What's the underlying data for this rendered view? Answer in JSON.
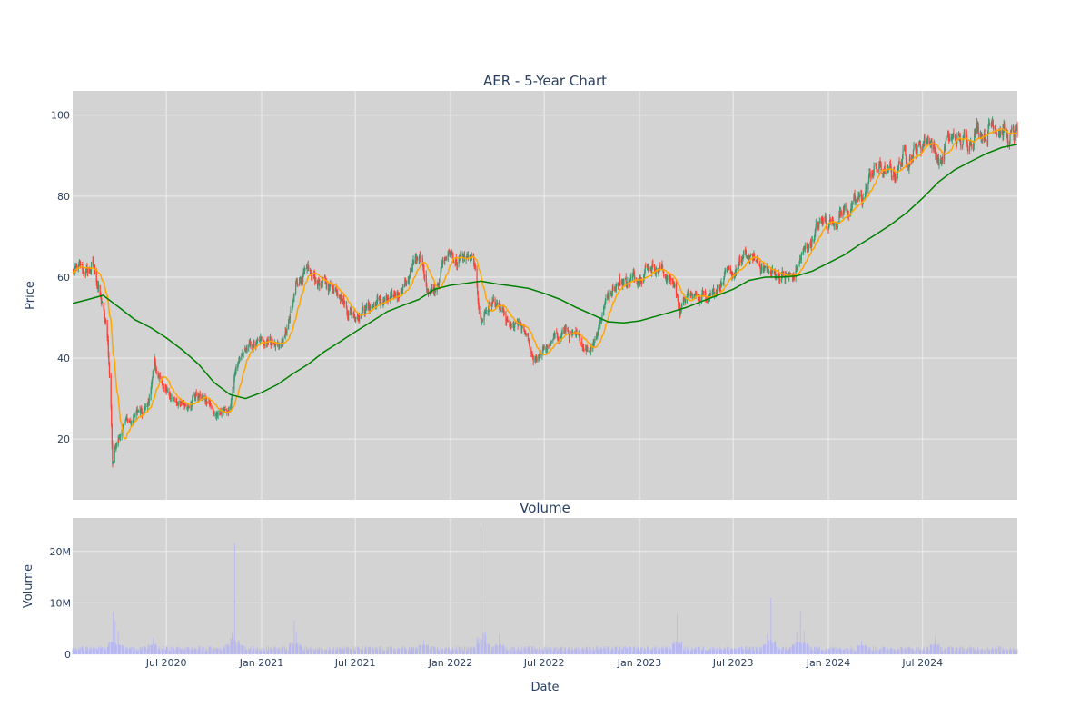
{
  "chart_data": [
    {
      "type": "candlestick",
      "title": "AER - 5-Year Chart",
      "ylabel": "Price",
      "ylim": [
        5,
        106
      ],
      "yticks": [
        20,
        40,
        60,
        80,
        100
      ],
      "grid": true,
      "colors": {
        "up": "#3d9970",
        "down": "#ff4136",
        "ma_short": "#ffa500",
        "ma_long": "#008000",
        "background": "#d3d3d3",
        "gridline": "#ececec"
      },
      "close_path": [
        [
          "2020-01-02",
          61
        ],
        [
          "2020-01-15",
          62
        ],
        [
          "2020-02-01",
          61
        ],
        [
          "2020-02-10",
          63
        ],
        [
          "2020-02-20",
          58
        ],
        [
          "2020-03-01",
          52
        ],
        [
          "2020-03-10",
          44
        ],
        [
          "2020-03-16",
          28
        ],
        [
          "2020-03-19",
          14
        ],
        [
          "2020-03-24",
          18
        ],
        [
          "2020-04-01",
          21
        ],
        [
          "2020-04-15",
          25
        ],
        [
          "2020-04-25",
          24
        ],
        [
          "2020-05-05",
          27
        ],
        [
          "2020-05-15",
          26
        ],
        [
          "2020-05-25",
          28
        ],
        [
          "2020-06-01",
          32
        ],
        [
          "2020-06-08",
          40
        ],
        [
          "2020-06-15",
          35
        ],
        [
          "2020-06-25",
          33
        ],
        [
          "2020-07-10",
          30
        ],
        [
          "2020-07-25",
          29
        ],
        [
          "2020-08-10",
          28
        ],
        [
          "2020-08-25",
          31
        ],
        [
          "2020-09-10",
          30
        ],
        [
          "2020-09-25",
          28
        ],
        [
          "2020-10-05",
          26
        ],
        [
          "2020-10-20",
          27
        ],
        [
          "2020-11-01",
          27
        ],
        [
          "2020-11-09",
          35
        ],
        [
          "2020-11-20",
          39
        ],
        [
          "2020-12-01",
          42
        ],
        [
          "2020-12-15",
          43
        ],
        [
          "2021-01-01",
          44
        ],
        [
          "2021-01-15",
          45
        ],
        [
          "2021-02-01",
          43
        ],
        [
          "2021-02-15",
          45
        ],
        [
          "2021-03-01",
          52
        ],
        [
          "2021-03-10",
          59
        ],
        [
          "2021-03-20",
          61
        ],
        [
          "2021-04-01",
          60
        ],
        [
          "2021-04-20",
          59
        ],
        [
          "2021-05-10",
          58
        ],
        [
          "2021-06-01",
          57
        ],
        [
          "2021-06-15",
          52
        ],
        [
          "2021-07-01",
          51
        ],
        [
          "2021-07-15",
          52
        ],
        [
          "2021-08-01",
          53
        ],
        [
          "2021-08-20",
          54
        ],
        [
          "2021-09-10",
          54
        ],
        [
          "2021-10-01",
          58
        ],
        [
          "2021-10-20",
          62
        ],
        [
          "2021-11-01",
          66
        ],
        [
          "2021-11-15",
          58
        ],
        [
          "2021-12-01",
          57
        ],
        [
          "2021-12-15",
          63
        ],
        [
          "2022-01-01",
          66
        ],
        [
          "2022-01-15",
          64
        ],
        [
          "2022-02-01",
          65
        ],
        [
          "2022-02-15",
          63
        ],
        [
          "2022-03-01",
          49
        ],
        [
          "2022-03-10",
          52
        ],
        [
          "2022-03-25",
          54
        ],
        [
          "2022-04-10",
          51
        ],
        [
          "2022-04-25",
          47
        ],
        [
          "2022-05-10",
          48
        ],
        [
          "2022-05-25",
          46
        ],
        [
          "2022-06-10",
          40
        ],
        [
          "2022-06-25",
          41
        ],
        [
          "2022-07-10",
          43
        ],
        [
          "2022-07-25",
          45
        ],
        [
          "2022-08-10",
          47
        ],
        [
          "2022-08-25",
          45
        ],
        [
          "2022-09-10",
          44
        ],
        [
          "2022-09-25",
          42
        ],
        [
          "2022-10-10",
          46
        ],
        [
          "2022-10-25",
          53
        ],
        [
          "2022-11-10",
          58
        ],
        [
          "2022-11-25",
          59
        ],
        [
          "2022-12-10",
          59
        ],
        [
          "2022-12-25",
          60
        ],
        [
          "2023-01-10",
          62
        ],
        [
          "2023-01-25",
          63
        ],
        [
          "2023-02-10",
          62
        ],
        [
          "2023-02-25",
          60
        ],
        [
          "2023-03-10",
          58
        ],
        [
          "2023-03-20",
          52
        ],
        [
          "2023-04-01",
          55
        ],
        [
          "2023-04-20",
          55
        ],
        [
          "2023-05-10",
          56
        ],
        [
          "2023-05-25",
          57
        ],
        [
          "2023-06-10",
          59
        ],
        [
          "2023-06-25",
          60
        ],
        [
          "2023-07-10",
          62
        ],
        [
          "2023-07-25",
          65
        ],
        [
          "2023-08-10",
          64
        ],
        [
          "2023-08-25",
          63
        ],
        [
          "2023-09-10",
          61
        ],
        [
          "2023-09-25",
          61
        ],
        [
          "2023-10-10",
          60
        ],
        [
          "2023-10-25",
          60
        ],
        [
          "2023-11-10",
          65
        ],
        [
          "2023-11-25",
          68
        ],
        [
          "2023-12-10",
          72
        ],
        [
          "2023-12-25",
          74
        ],
        [
          "2024-01-10",
          74
        ],
        [
          "2024-01-25",
          76
        ],
        [
          "2024-02-10",
          77
        ],
        [
          "2024-02-25",
          78
        ],
        [
          "2024-03-10",
          80
        ],
        [
          "2024-03-25",
          86
        ],
        [
          "2024-04-10",
          87
        ],
        [
          "2024-04-25",
          85
        ],
        [
          "2024-05-10",
          86
        ],
        [
          "2024-05-25",
          90
        ],
        [
          "2024-06-10",
          91
        ],
        [
          "2024-06-25",
          92
        ],
        [
          "2024-07-05",
          94
        ],
        [
          "2024-07-15",
          95
        ],
        [
          "2024-07-25",
          91
        ],
        [
          "2024-08-05",
          88
        ],
        [
          "2024-08-15",
          93
        ],
        [
          "2024-09-01",
          94
        ],
        [
          "2024-09-15",
          93
        ],
        [
          "2024-10-01",
          95
        ],
        [
          "2024-10-15",
          97
        ],
        [
          "2024-11-01",
          96
        ],
        [
          "2024-11-15",
          99
        ],
        [
          "2024-12-01",
          97
        ],
        [
          "2024-12-15",
          94
        ],
        [
          "2024-12-31",
          95
        ]
      ],
      "ma_long": [
        [
          "2020-01-02",
          53.5
        ],
        [
          "2020-02-01",
          54.5
        ],
        [
          "2020-03-01",
          55.5
        ],
        [
          "2020-04-01",
          52.5
        ],
        [
          "2020-05-01",
          49.5
        ],
        [
          "2020-06-01",
          47.5
        ],
        [
          "2020-07-01",
          45
        ],
        [
          "2020-08-01",
          42
        ],
        [
          "2020-09-01",
          38.5
        ],
        [
          "2020-10-01",
          34
        ],
        [
          "2020-11-01",
          31
        ],
        [
          "2020-12-01",
          30
        ],
        [
          "2021-01-01",
          31.5
        ],
        [
          "2021-02-01",
          33.5
        ],
        [
          "2021-03-01",
          36
        ],
        [
          "2021-04-01",
          38.5
        ],
        [
          "2021-05-01",
          41.5
        ],
        [
          "2021-06-01",
          44
        ],
        [
          "2021-07-01",
          46.5
        ],
        [
          "2021-08-01",
          49
        ],
        [
          "2021-09-01",
          51.5
        ],
        [
          "2021-10-01",
          53
        ],
        [
          "2021-11-01",
          54.5
        ],
        [
          "2021-12-01",
          57
        ],
        [
          "2022-01-01",
          58
        ],
        [
          "2022-02-01",
          58.5
        ],
        [
          "2022-03-01",
          59
        ],
        [
          "2022-04-01",
          58.3
        ],
        [
          "2022-05-01",
          57.8
        ],
        [
          "2022-06-01",
          57.2
        ],
        [
          "2022-07-01",
          56
        ],
        [
          "2022-08-01",
          54.5
        ],
        [
          "2022-09-01",
          52.5
        ],
        [
          "2022-10-01",
          50.8
        ],
        [
          "2022-11-01",
          49
        ],
        [
          "2022-12-01",
          48.7
        ],
        [
          "2023-01-01",
          49.2
        ],
        [
          "2023-02-01",
          50.3
        ],
        [
          "2023-03-01",
          51.3
        ],
        [
          "2023-04-01",
          52.5
        ],
        [
          "2023-05-01",
          54
        ],
        [
          "2023-06-01",
          55.5
        ],
        [
          "2023-07-01",
          57
        ],
        [
          "2023-08-01",
          59.2
        ],
        [
          "2023-09-01",
          60
        ],
        [
          "2023-10-01",
          60
        ],
        [
          "2023-11-01",
          60.3
        ],
        [
          "2023-12-01",
          61.5
        ],
        [
          "2024-01-01",
          63.5
        ],
        [
          "2024-02-01",
          65.5
        ],
        [
          "2024-03-01",
          68
        ],
        [
          "2024-04-01",
          70.5
        ],
        [
          "2024-05-01",
          73
        ],
        [
          "2024-06-01",
          76
        ],
        [
          "2024-07-01",
          79.5
        ],
        [
          "2024-08-01",
          83.5
        ],
        [
          "2024-09-01",
          86.5
        ],
        [
          "2024-10-01",
          88.5
        ],
        [
          "2024-11-01",
          90.5
        ],
        [
          "2024-12-01",
          92
        ],
        [
          "2024-12-31",
          92.8
        ]
      ]
    },
    {
      "type": "bar",
      "title": "Volume",
      "xlabel": "Date",
      "ylabel": "Volume",
      "ylim": [
        0,
        26500000
      ],
      "yticks": [
        0,
        10000000,
        20000000
      ],
      "ytick_labels": [
        "0",
        "10M",
        "20M"
      ],
      "grid": true,
      "colors": {
        "bar": "#b6b6f0",
        "background": "#d3d3d3"
      },
      "baseline_range": [
        600000,
        1600000
      ],
      "spikes": [
        [
          "2020-03-20",
          8200000
        ],
        [
          "2020-03-24",
          6500000
        ],
        [
          "2020-03-30",
          4500000
        ],
        [
          "2020-06-05",
          3200000
        ],
        [
          "2020-11-01",
          5600000
        ],
        [
          "2020-11-10",
          21700000
        ],
        [
          "2020-11-18",
          2800000
        ],
        [
          "2021-03-05",
          6600000
        ],
        [
          "2021-03-09",
          4200000
        ],
        [
          "2021-11-10",
          2700000
        ],
        [
          "2022-03-01",
          24800000
        ],
        [
          "2022-03-05",
          4700000
        ],
        [
          "2022-03-10",
          3800000
        ],
        [
          "2022-04-05",
          4000000
        ],
        [
          "2023-03-15",
          7800000
        ],
        [
          "2023-09-05",
          4000000
        ],
        [
          "2023-09-12",
          11000000
        ],
        [
          "2023-11-01",
          4200000
        ],
        [
          "2023-11-08",
          8400000
        ],
        [
          "2023-11-15",
          4500000
        ],
        [
          "2024-03-05",
          2600000
        ],
        [
          "2024-07-25",
          3500000
        ]
      ]
    }
  ],
  "x_axis": {
    "ticks": [
      "Jul 2020",
      "Jan 2021",
      "Jul 2021",
      "Jan 2022",
      "Jul 2022",
      "Jan 2023",
      "Jul 2023",
      "Jan 2024",
      "Jul 2024"
    ],
    "tick_dates": [
      "2020-07-01",
      "2021-01-01",
      "2021-07-01",
      "2022-01-01",
      "2022-07-01",
      "2023-01-01",
      "2023-07-01",
      "2024-01-01",
      "2024-07-01"
    ],
    "range": [
      "2020-01-02",
      "2024-12-31"
    ]
  }
}
